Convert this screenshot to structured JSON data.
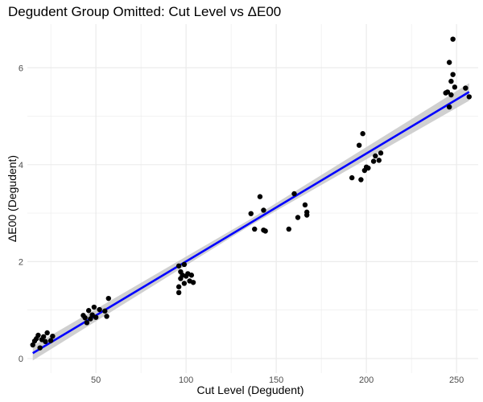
{
  "chart_data": {
    "type": "scatter",
    "title": "Degudent Group Omitted: Cut Level vs ΔE00",
    "xlabel": "Cut Level (Degudent)",
    "ylabel": "ΔE00 (Degudent)",
    "xlim": [
      12,
      262
    ],
    "ylim": [
      -0.3,
      6.9
    ],
    "x_ticks": [
      50,
      100,
      150,
      200,
      250
    ],
    "y_ticks": [
      0,
      2,
      4,
      6
    ],
    "grid": true,
    "legend": "none",
    "colors": {
      "points": "#000000",
      "fit_line": "#0000ff",
      "confidence_band": "#c8c8c8",
      "grid": "#ebebeb"
    },
    "fit_line": {
      "x": [
        15,
        257
      ],
      "y": [
        0.11,
        5.5
      ]
    },
    "confidence_band": {
      "x": [
        15,
        135,
        257
      ],
      "lower": [
        -0.04,
        2.73,
        5.32
      ],
      "upper": [
        0.26,
        2.86,
        5.68
      ]
    },
    "points": [
      {
        "x": 15,
        "y": 0.28
      },
      {
        "x": 16,
        "y": 0.36
      },
      {
        "x": 17,
        "y": 0.41
      },
      {
        "x": 18,
        "y": 0.48
      },
      {
        "x": 19,
        "y": 0.22
      },
      {
        "x": 20,
        "y": 0.39
      },
      {
        "x": 21,
        "y": 0.45
      },
      {
        "x": 22,
        "y": 0.35
      },
      {
        "x": 23,
        "y": 0.53
      },
      {
        "x": 25,
        "y": 0.37
      },
      {
        "x": 26,
        "y": 0.46
      },
      {
        "x": 43,
        "y": 0.89
      },
      {
        "x": 44,
        "y": 0.84
      },
      {
        "x": 45,
        "y": 0.74
      },
      {
        "x": 46,
        "y": 0.99
      },
      {
        "x": 47,
        "y": 0.82
      },
      {
        "x": 48,
        "y": 0.9
      },
      {
        "x": 49,
        "y": 1.06
      },
      {
        "x": 50,
        "y": 0.85
      },
      {
        "x": 52,
        "y": 1.01
      },
      {
        "x": 55,
        "y": 0.98
      },
      {
        "x": 56,
        "y": 0.87
      },
      {
        "x": 57,
        "y": 1.24
      },
      {
        "x": 96,
        "y": 1.36
      },
      {
        "x": 96,
        "y": 1.48
      },
      {
        "x": 96,
        "y": 1.91
      },
      {
        "x": 97,
        "y": 1.65
      },
      {
        "x": 97,
        "y": 1.79
      },
      {
        "x": 98,
        "y": 1.72
      },
      {
        "x": 99,
        "y": 1.55
      },
      {
        "x": 99,
        "y": 1.94
      },
      {
        "x": 100,
        "y": 1.7
      },
      {
        "x": 101,
        "y": 1.75
      },
      {
        "x": 102,
        "y": 1.6
      },
      {
        "x": 103,
        "y": 1.72
      },
      {
        "x": 104,
        "y": 1.57
      },
      {
        "x": 136,
        "y": 2.99
      },
      {
        "x": 138,
        "y": 2.67
      },
      {
        "x": 141,
        "y": 3.34
      },
      {
        "x": 143,
        "y": 3.06
      },
      {
        "x": 143,
        "y": 2.65
      },
      {
        "x": 144,
        "y": 2.63
      },
      {
        "x": 157,
        "y": 2.67
      },
      {
        "x": 160,
        "y": 3.4
      },
      {
        "x": 162,
        "y": 2.91
      },
      {
        "x": 166,
        "y": 3.17
      },
      {
        "x": 167,
        "y": 2.96
      },
      {
        "x": 167,
        "y": 3.02
      },
      {
        "x": 192,
        "y": 3.73
      },
      {
        "x": 196,
        "y": 4.4
      },
      {
        "x": 197,
        "y": 3.69
      },
      {
        "x": 198,
        "y": 4.64
      },
      {
        "x": 199,
        "y": 3.88
      },
      {
        "x": 200,
        "y": 3.95
      },
      {
        "x": 201,
        "y": 3.93
      },
      {
        "x": 204,
        "y": 4.07
      },
      {
        "x": 205,
        "y": 4.18
      },
      {
        "x": 207,
        "y": 4.09
      },
      {
        "x": 208,
        "y": 4.24
      },
      {
        "x": 244,
        "y": 5.48
      },
      {
        "x": 245,
        "y": 5.5
      },
      {
        "x": 246,
        "y": 6.11
      },
      {
        "x": 246,
        "y": 5.19
      },
      {
        "x": 247,
        "y": 5.72
      },
      {
        "x": 247,
        "y": 5.44
      },
      {
        "x": 248,
        "y": 5.86
      },
      {
        "x": 248,
        "y": 6.59
      },
      {
        "x": 249,
        "y": 5.6
      },
      {
        "x": 255,
        "y": 5.58
      },
      {
        "x": 257,
        "y": 5.4
      }
    ]
  }
}
